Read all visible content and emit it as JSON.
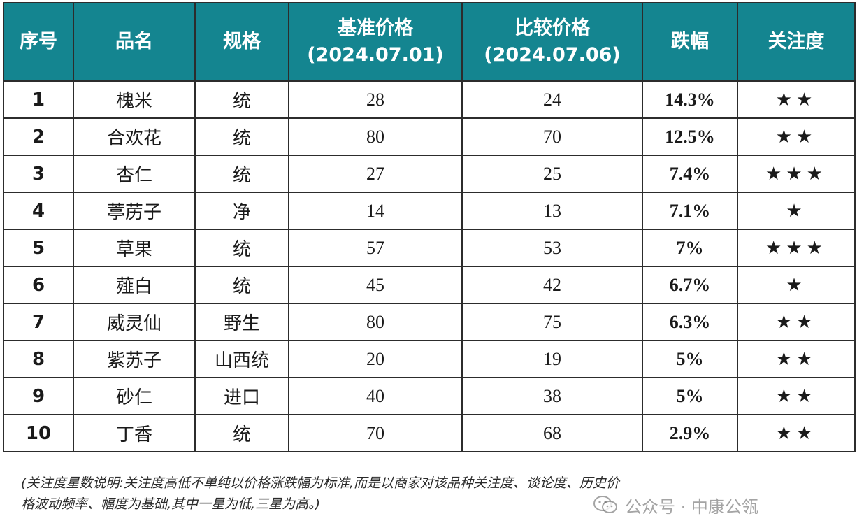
{
  "table": {
    "headers": {
      "no": "序号",
      "name": "品名",
      "spec": "规格",
      "base_label": "基准价格",
      "base_date": "(2024.07.01)",
      "comp_label": "比较价格",
      "comp_date": "(2024.07.06)",
      "drop": "跌幅",
      "attention": "关注度"
    },
    "rows": [
      {
        "no": "1",
        "name": "槐米",
        "spec": "统",
        "base": "28",
        "comp": "24",
        "drop": "14.3%",
        "stars": "★★",
        "star_count": 2
      },
      {
        "no": "2",
        "name": "合欢花",
        "spec": "统",
        "base": "80",
        "comp": "70",
        "drop": "12.5%",
        "stars": "★★",
        "star_count": 2
      },
      {
        "no": "3",
        "name": "杏仁",
        "spec": "统",
        "base": "27",
        "comp": "25",
        "drop": "7.4%",
        "stars": "★★★",
        "star_count": 3
      },
      {
        "no": "4",
        "name": "葶苈子",
        "spec": "净",
        "base": "14",
        "comp": "13",
        "drop": "7.1%",
        "stars": "★",
        "star_count": 1
      },
      {
        "no": "5",
        "name": "草果",
        "spec": "统",
        "base": "57",
        "comp": "53",
        "drop": "7%",
        "stars": "★★★",
        "star_count": 3
      },
      {
        "no": "6",
        "name": "薤白",
        "spec": "统",
        "base": "45",
        "comp": "42",
        "drop": "6.7%",
        "stars": "★",
        "star_count": 1
      },
      {
        "no": "7",
        "name": "威灵仙",
        "spec": "野生",
        "base": "80",
        "comp": "75",
        "drop": "6.3%",
        "stars": "★★",
        "star_count": 2
      },
      {
        "no": "8",
        "name": "紫苏子",
        "spec": "山西统",
        "base": "20",
        "comp": "19",
        "drop": "5%",
        "stars": "★★",
        "star_count": 2
      },
      {
        "no": "9",
        "name": "砂仁",
        "spec": "进口",
        "base": "40",
        "comp": "38",
        "drop": "5%",
        "stars": "★★",
        "star_count": 2
      },
      {
        "no": "10",
        "name": "丁香",
        "spec": "统",
        "base": "70",
        "comp": "68",
        "drop": "2.9%",
        "stars": "★★",
        "star_count": 2
      }
    ]
  },
  "footnote": {
    "line1": "(关注度星数说明:关注度高低不单纯以价格涨跌幅为标准,而是以商家对该品种关注度、谈论度、历史价",
    "line2": "格波动频率、幅度为基础,其中一星为低,三星为高。)"
  },
  "watermark": {
    "text": "公众号 · 中康公瓴",
    "icon": "wechat-icon"
  },
  "colors": {
    "header_bg": "#148590",
    "drop_text": "#22a84a",
    "star": "#f5b72c"
  }
}
